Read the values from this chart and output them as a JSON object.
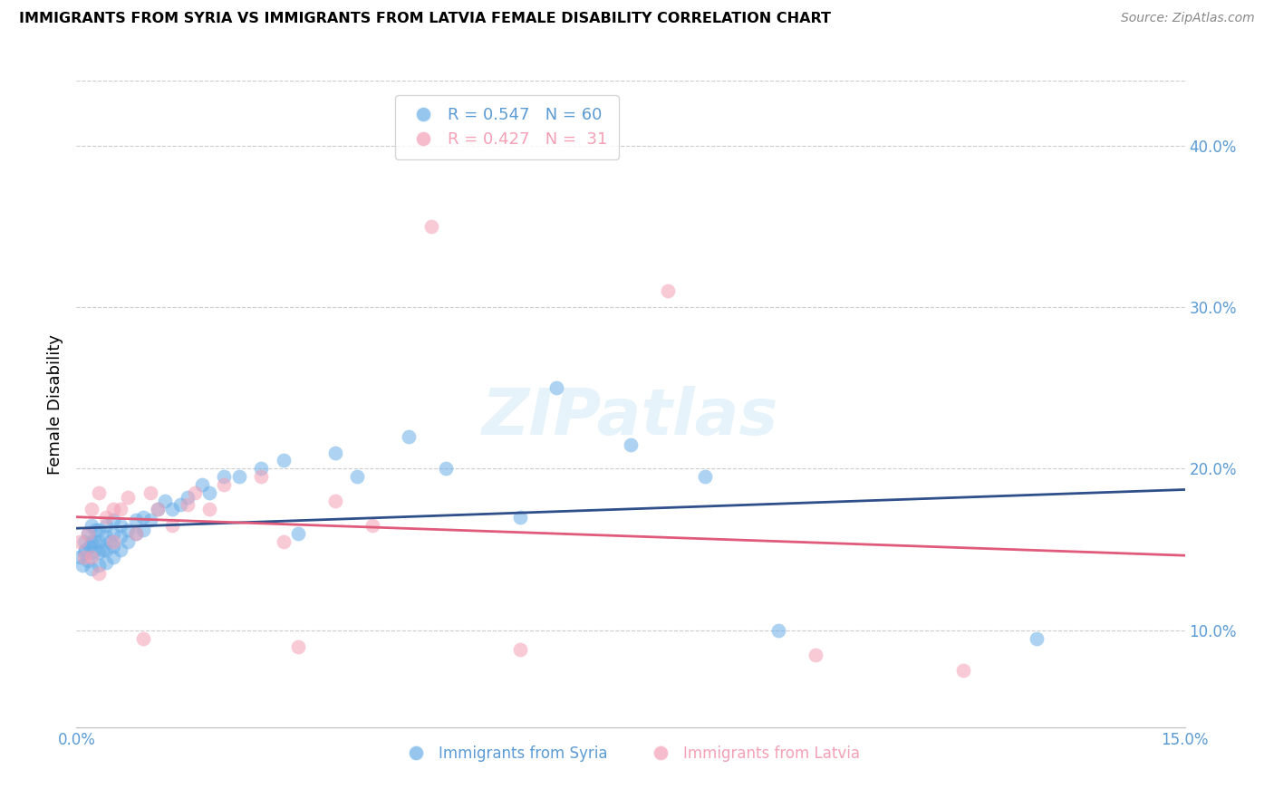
{
  "title": "IMMIGRANTS FROM SYRIA VS IMMIGRANTS FROM LATVIA FEMALE DISABILITY CORRELATION CHART",
  "source": "Source: ZipAtlas.com",
  "ylabel": "Female Disability",
  "xlabel_legend_syria": "Immigrants from Syria",
  "xlabel_legend_latvia": "Immigrants from Latvia",
  "R_syria": 0.547,
  "N_syria": 60,
  "R_latvia": 0.427,
  "N_latvia": 31,
  "xlim": [
    0.0,
    0.15
  ],
  "ylim": [
    0.04,
    0.44
  ],
  "yticks": [
    0.1,
    0.2,
    0.3,
    0.4
  ],
  "xticks": [
    0.0,
    0.15
  ],
  "color_syria": "#6aaee8",
  "color_latvia": "#f4a0b5",
  "color_trendline_syria": "#2e4f8a",
  "color_trendline_latvia": "#e05a7a",
  "color_axis_labels": "#5b9bd5",
  "watermark": "ZIPatlas",
  "syria_x": [
    0.0005,
    0.0008,
    0.001,
    0.001,
    0.0012,
    0.0015,
    0.0015,
    0.0018,
    0.002,
    0.002,
    0.002,
    0.0022,
    0.0025,
    0.0025,
    0.003,
    0.003,
    0.003,
    0.003,
    0.0035,
    0.004,
    0.004,
    0.004,
    0.004,
    0.0045,
    0.005,
    0.005,
    0.005,
    0.005,
    0.006,
    0.006,
    0.006,
    0.007,
    0.007,
    0.008,
    0.008,
    0.009,
    0.009,
    0.01,
    0.011,
    0.012,
    0.013,
    0.014,
    0.015,
    0.017,
    0.018,
    0.02,
    0.022,
    0.025,
    0.028,
    0.03,
    0.035,
    0.038,
    0.045,
    0.05,
    0.06,
    0.065,
    0.075,
    0.085,
    0.095,
    0.13
  ],
  "syria_y": [
    0.145,
    0.14,
    0.148,
    0.155,
    0.15,
    0.143,
    0.16,
    0.152,
    0.138,
    0.155,
    0.165,
    0.148,
    0.155,
    0.162,
    0.14,
    0.148,
    0.155,
    0.162,
    0.15,
    0.142,
    0.15,
    0.158,
    0.165,
    0.155,
    0.145,
    0.152,
    0.16,
    0.168,
    0.15,
    0.158,
    0.165,
    0.155,
    0.162,
    0.16,
    0.168,
    0.162,
    0.17,
    0.168,
    0.175,
    0.18,
    0.175,
    0.178,
    0.182,
    0.19,
    0.185,
    0.195,
    0.195,
    0.2,
    0.205,
    0.16,
    0.21,
    0.195,
    0.22,
    0.2,
    0.17,
    0.25,
    0.215,
    0.195,
    0.1,
    0.095
  ],
  "latvia_x": [
    0.0005,
    0.001,
    0.0015,
    0.002,
    0.002,
    0.003,
    0.003,
    0.004,
    0.005,
    0.005,
    0.006,
    0.007,
    0.008,
    0.009,
    0.01,
    0.011,
    0.013,
    0.015,
    0.016,
    0.018,
    0.02,
    0.025,
    0.028,
    0.03,
    0.035,
    0.04,
    0.048,
    0.06,
    0.08,
    0.1,
    0.12
  ],
  "latvia_y": [
    0.155,
    0.145,
    0.16,
    0.145,
    0.175,
    0.135,
    0.185,
    0.17,
    0.175,
    0.155,
    0.175,
    0.182,
    0.16,
    0.095,
    0.185,
    0.175,
    0.165,
    0.178,
    0.185,
    0.175,
    0.19,
    0.195,
    0.155,
    0.09,
    0.18,
    0.165,
    0.35,
    0.088,
    0.31,
    0.085,
    0.075
  ]
}
